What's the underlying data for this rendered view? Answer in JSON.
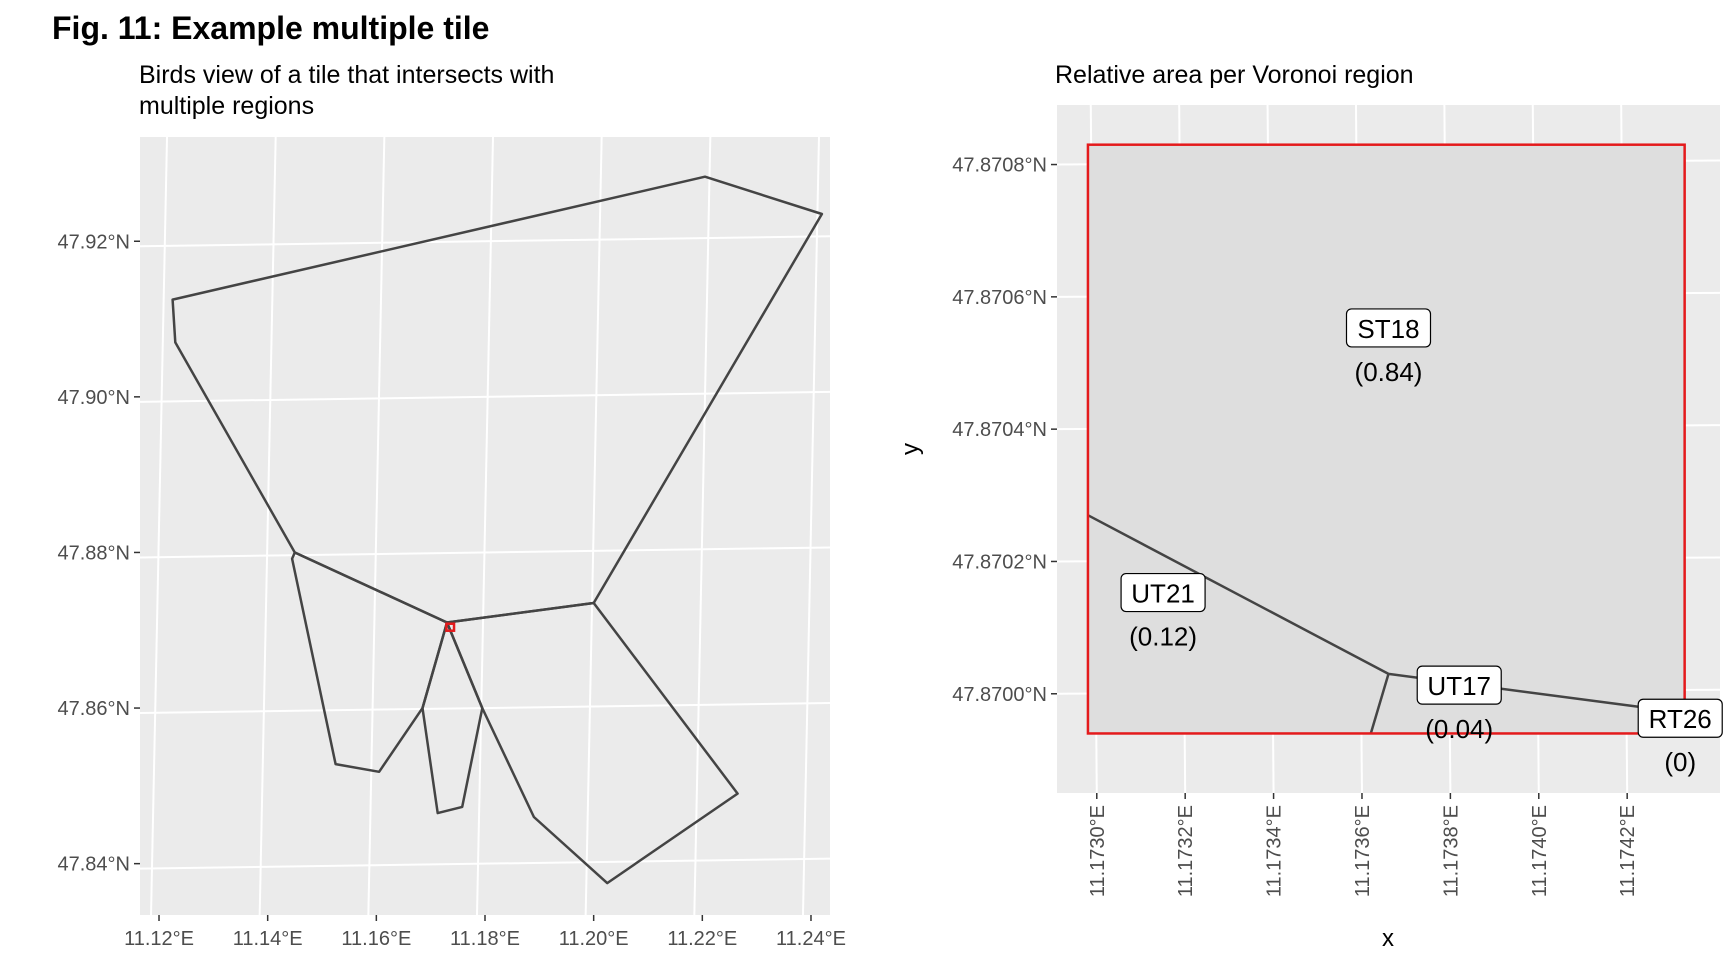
{
  "figure": {
    "title": "Fig. 11: Example multiple tile"
  },
  "chart_data": [
    {
      "type": "map",
      "subtitle_lines": [
        "Birds view of a tile that intersects with",
        "multiple regions"
      ],
      "xlabel": "",
      "ylabel": "",
      "x_ticks": [
        {
          "value": 11.12,
          "label": "11.12°E"
        },
        {
          "value": 11.14,
          "label": "11.14°E"
        },
        {
          "value": 11.16,
          "label": "11.16°E"
        },
        {
          "value": 11.18,
          "label": "11.18°E"
        },
        {
          "value": 11.2,
          "label": "11.20°E"
        },
        {
          "value": 11.22,
          "label": "11.22°E"
        },
        {
          "value": 11.24,
          "label": "11.24°E"
        }
      ],
      "y_ticks": [
        {
          "value": 47.84,
          "label": "47.84°N"
        },
        {
          "value": 47.86,
          "label": "47.86°N"
        },
        {
          "value": 47.88,
          "label": "47.88°N"
        },
        {
          "value": 47.9,
          "label": "47.90°N"
        },
        {
          "value": 47.92,
          "label": "47.92°N"
        }
      ],
      "xlim": [
        11.1165,
        11.2435
      ],
      "ylim": [
        47.8334,
        47.9334
      ],
      "grid": true,
      "regions": [
        [
          [
            11.1225,
            47.9125
          ],
          [
            11.123,
            47.907
          ],
          [
            11.145,
            47.88
          ],
          [
            11.173,
            47.871
          ],
          [
            11.2,
            47.8735
          ],
          [
            11.242,
            47.9235
          ],
          [
            11.2205,
            47.9283
          ]
        ],
        [
          [
            11.145,
            47.88
          ],
          [
            11.173,
            47.871
          ],
          [
            11.1685,
            47.86
          ],
          [
            11.1605,
            47.8518
          ],
          [
            11.1525,
            47.8528
          ],
          [
            11.1445,
            47.8792
          ]
        ],
        [
          [
            11.173,
            47.871
          ],
          [
            11.1795,
            47.86
          ],
          [
            11.1758,
            47.8473
          ],
          [
            11.1713,
            47.8465
          ],
          [
            11.1685,
            47.86
          ]
        ],
        [
          [
            11.173,
            47.871
          ],
          [
            11.2,
            47.8735
          ],
          [
            11.2265,
            47.849
          ],
          [
            11.2025,
            47.8375
          ],
          [
            11.189,
            47.846
          ],
          [
            11.1795,
            47.86
          ]
        ]
      ],
      "highlight_tile": {
        "lon": [
          11.1729,
          11.1743
        ],
        "lat": [
          47.86994,
          47.87084
        ],
        "color": "#e41a1c"
      }
    },
    {
      "type": "map",
      "subtitle": "Relative area per Voronoi region",
      "xlabel": "x",
      "ylabel": "y",
      "x_ticks": [
        {
          "value": 11.173,
          "label": "11.1730°E"
        },
        {
          "value": 11.1732,
          "label": "11.1732°E"
        },
        {
          "value": 11.1734,
          "label": "11.1734°E"
        },
        {
          "value": 11.1736,
          "label": "11.1736°E"
        },
        {
          "value": 11.1738,
          "label": "11.1738°E"
        },
        {
          "value": 11.174,
          "label": "11.1740°E"
        },
        {
          "value": 11.1742,
          "label": "11.1742°E"
        }
      ],
      "y_ticks": [
        {
          "value": 47.87,
          "label": "47.8700°N"
        },
        {
          "value": 47.8702,
          "label": "47.8702°N"
        },
        {
          "value": 47.8704,
          "label": "47.8704°N"
        },
        {
          "value": 47.8706,
          "label": "47.8706°N"
        },
        {
          "value": 47.8708,
          "label": "47.8708°N"
        }
      ],
      "xlim": [
        11.17291,
        11.17441
      ],
      "ylim": [
        47.86985,
        47.87089
      ],
      "grid": true,
      "tile": {
        "lon": [
          11.17298,
          11.17433
        ],
        "lat": [
          47.86994,
          47.87083
        ],
        "color": "#e41a1c"
      },
      "boundaries": [
        [
          [
            11.17298,
            47.87027
          ],
          [
            11.17366,
            47.87003
          ],
          [
            11.17423,
            47.86998
          ]
        ],
        [
          [
            11.17366,
            47.87003
          ],
          [
            11.17362,
            47.86994
          ]
        ]
      ],
      "labels": [
        {
          "name": "ST18",
          "value": "(0.84)",
          "lon": 11.17366,
          "lat": 47.87055
        },
        {
          "name": "UT21",
          "value": "(0.12)",
          "lon": 11.17315,
          "lat": 47.87015
        },
        {
          "name": "UT17",
          "value": "(0.04)",
          "lon": 11.17382,
          "lat": 47.87001
        },
        {
          "name": "RT26",
          "value": "(0)",
          "lon": 11.17432,
          "lat": 47.86996
        }
      ]
    }
  ]
}
